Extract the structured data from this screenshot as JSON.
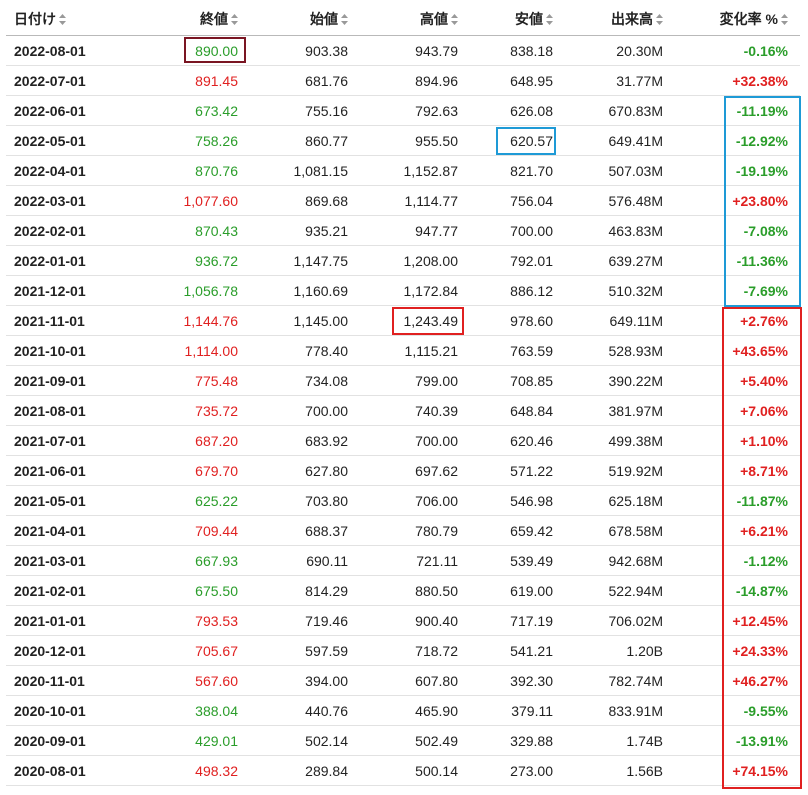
{
  "columns": {
    "date": "日付け",
    "close": "終値",
    "open": "始値",
    "high": "高値",
    "low": "安値",
    "volume": "出来高",
    "change": "変化率 %"
  },
  "colors": {
    "positive": "#e02020",
    "negative": "#2a9d2a",
    "highlight_maroon": "#7a1522",
    "highlight_blue": "#1e9ad6",
    "highlight_red": "#e02020"
  },
  "rows": [
    {
      "date": "2022-08-01",
      "close": "890.00",
      "close_dir": "neg",
      "open": "903.38",
      "high": "943.79",
      "low": "838.18",
      "volume": "20.30M",
      "change": "-0.16%",
      "change_dir": "neg"
    },
    {
      "date": "2022-07-01",
      "close": "891.45",
      "close_dir": "pos",
      "open": "681.76",
      "high": "894.96",
      "low": "648.95",
      "volume": "31.77M",
      "change": "+32.38%",
      "change_dir": "pos"
    },
    {
      "date": "2022-06-01",
      "close": "673.42",
      "close_dir": "neg",
      "open": "755.16",
      "high": "792.63",
      "low": "626.08",
      "volume": "670.83M",
      "change": "-11.19%",
      "change_dir": "neg"
    },
    {
      "date": "2022-05-01",
      "close": "758.26",
      "close_dir": "neg",
      "open": "860.77",
      "high": "955.50",
      "low": "620.57",
      "volume": "649.41M",
      "change": "-12.92%",
      "change_dir": "neg"
    },
    {
      "date": "2022-04-01",
      "close": "870.76",
      "close_dir": "neg",
      "open": "1,081.15",
      "high": "1,152.87",
      "low": "821.70",
      "volume": "507.03M",
      "change": "-19.19%",
      "change_dir": "neg"
    },
    {
      "date": "2022-03-01",
      "close": "1,077.60",
      "close_dir": "pos",
      "open": "869.68",
      "high": "1,114.77",
      "low": "756.04",
      "volume": "576.48M",
      "change": "+23.80%",
      "change_dir": "pos"
    },
    {
      "date": "2022-02-01",
      "close": "870.43",
      "close_dir": "neg",
      "open": "935.21",
      "high": "947.77",
      "low": "700.00",
      "volume": "463.83M",
      "change": "-7.08%",
      "change_dir": "neg"
    },
    {
      "date": "2022-01-01",
      "close": "936.72",
      "close_dir": "neg",
      "open": "1,147.75",
      "high": "1,208.00",
      "low": "792.01",
      "volume": "639.27M",
      "change": "-11.36%",
      "change_dir": "neg"
    },
    {
      "date": "2021-12-01",
      "close": "1,056.78",
      "close_dir": "neg",
      "open": "1,160.69",
      "high": "1,172.84",
      "low": "886.12",
      "volume": "510.32M",
      "change": "-7.69%",
      "change_dir": "neg"
    },
    {
      "date": "2021-11-01",
      "close": "1,144.76",
      "close_dir": "pos",
      "open": "1,145.00",
      "high": "1,243.49",
      "low": "978.60",
      "volume": "649.11M",
      "change": "+2.76%",
      "change_dir": "pos"
    },
    {
      "date": "2021-10-01",
      "close": "1,114.00",
      "close_dir": "pos",
      "open": "778.40",
      "high": "1,115.21",
      "low": "763.59",
      "volume": "528.93M",
      "change": "+43.65%",
      "change_dir": "pos"
    },
    {
      "date": "2021-09-01",
      "close": "775.48",
      "close_dir": "pos",
      "open": "734.08",
      "high": "799.00",
      "low": "708.85",
      "volume": "390.22M",
      "change": "+5.40%",
      "change_dir": "pos"
    },
    {
      "date": "2021-08-01",
      "close": "735.72",
      "close_dir": "pos",
      "open": "700.00",
      "high": "740.39",
      "low": "648.84",
      "volume": "381.97M",
      "change": "+7.06%",
      "change_dir": "pos"
    },
    {
      "date": "2021-07-01",
      "close": "687.20",
      "close_dir": "pos",
      "open": "683.92",
      "high": "700.00",
      "low": "620.46",
      "volume": "499.38M",
      "change": "+1.10%",
      "change_dir": "pos"
    },
    {
      "date": "2021-06-01",
      "close": "679.70",
      "close_dir": "pos",
      "open": "627.80",
      "high": "697.62",
      "low": "571.22",
      "volume": "519.92M",
      "change": "+8.71%",
      "change_dir": "pos"
    },
    {
      "date": "2021-05-01",
      "close": "625.22",
      "close_dir": "neg",
      "open": "703.80",
      "high": "706.00",
      "low": "546.98",
      "volume": "625.18M",
      "change": "-11.87%",
      "change_dir": "neg"
    },
    {
      "date": "2021-04-01",
      "close": "709.44",
      "close_dir": "pos",
      "open": "688.37",
      "high": "780.79",
      "low": "659.42",
      "volume": "678.58M",
      "change": "+6.21%",
      "change_dir": "pos"
    },
    {
      "date": "2021-03-01",
      "close": "667.93",
      "close_dir": "neg",
      "open": "690.11",
      "high": "721.11",
      "low": "539.49",
      "volume": "942.68M",
      "change": "-1.12%",
      "change_dir": "neg"
    },
    {
      "date": "2021-02-01",
      "close": "675.50",
      "close_dir": "neg",
      "open": "814.29",
      "high": "880.50",
      "low": "619.00",
      "volume": "522.94M",
      "change": "-14.87%",
      "change_dir": "neg"
    },
    {
      "date": "2021-01-01",
      "close": "793.53",
      "close_dir": "pos",
      "open": "719.46",
      "high": "900.40",
      "low": "717.19",
      "volume": "706.02M",
      "change": "+12.45%",
      "change_dir": "pos"
    },
    {
      "date": "2020-12-01",
      "close": "705.67",
      "close_dir": "pos",
      "open": "597.59",
      "high": "718.72",
      "low": "541.21",
      "volume": "1.20B",
      "change": "+24.33%",
      "change_dir": "pos"
    },
    {
      "date": "2020-11-01",
      "close": "567.60",
      "close_dir": "pos",
      "open": "394.00",
      "high": "607.80",
      "low": "392.30",
      "volume": "782.74M",
      "change": "+46.27%",
      "change_dir": "pos"
    },
    {
      "date": "2020-10-01",
      "close": "388.04",
      "close_dir": "neg",
      "open": "440.76",
      "high": "465.90",
      "low": "379.11",
      "volume": "833.91M",
      "change": "-9.55%",
      "change_dir": "neg"
    },
    {
      "date": "2020-09-01",
      "close": "429.01",
      "close_dir": "neg",
      "open": "502.14",
      "high": "502.49",
      "low": "329.88",
      "volume": "1.74B",
      "change": "-13.91%",
      "change_dir": "neg"
    },
    {
      "date": "2020-08-01",
      "close": "498.32",
      "close_dir": "pos",
      "open": "289.84",
      "high": "500.14",
      "low": "273.00",
      "volume": "1.56B",
      "change": "+74.15%",
      "change_dir": "pos"
    }
  ]
}
